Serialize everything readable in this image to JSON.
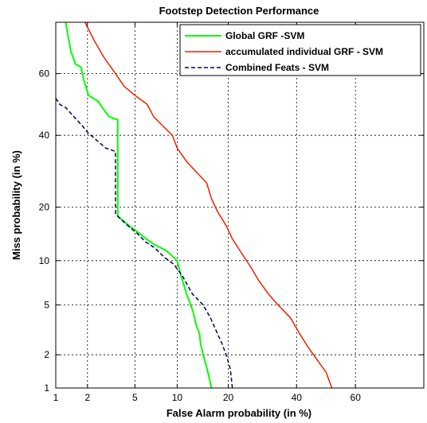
{
  "chart_data": {
    "type": "line",
    "title": "Footstep Detection Performance",
    "xlabel": "False Alarm probability (in %)",
    "ylabel": "Miss probability (in %)",
    "scale": "normal-deviate (DET)",
    "xlim": [
      1,
      80
    ],
    "ylim": [
      1,
      75
    ],
    "x_ticks": [
      1,
      2,
      5,
      10,
      20,
      40,
      60
    ],
    "y_ticks": [
      1,
      2,
      5,
      10,
      20,
      40,
      60
    ],
    "x_tick_labels": [
      "1",
      "2",
      "5",
      "10",
      "20",
      "40",
      "60"
    ],
    "y_tick_labels": [
      "1",
      "2",
      "5",
      "10",
      "20",
      "40",
      "60"
    ],
    "grid": true,
    "legend_position": "top-right",
    "series": [
      {
        "name": "Global GRF -SVM",
        "color": "#00ff00",
        "style": "solid",
        "points": [
          [
            1.25,
            75
          ],
          [
            1.4,
            67
          ],
          [
            1.55,
            63
          ],
          [
            1.75,
            62
          ],
          [
            1.85,
            58
          ],
          [
            2.05,
            53
          ],
          [
            2.5,
            51
          ],
          [
            2.7,
            49
          ],
          [
            3.1,
            46
          ],
          [
            3.65,
            45
          ],
          [
            3.65,
            18
          ],
          [
            4.05,
            17
          ],
          [
            4.5,
            16
          ],
          [
            5.1,
            15
          ],
          [
            6.1,
            13.5
          ],
          [
            7.0,
            12.5
          ],
          [
            8.5,
            11.5
          ],
          [
            10.0,
            10
          ],
          [
            10.6,
            8
          ],
          [
            11.5,
            6
          ],
          [
            12.6,
            4.5
          ],
          [
            13.2,
            3.5
          ],
          [
            13.8,
            3.0
          ],
          [
            14.0,
            2.5
          ],
          [
            14.5,
            2.0
          ],
          [
            15.3,
            1.5
          ],
          [
            16.2,
            1.0
          ]
        ]
      },
      {
        "name": "accumulated individual GRF - SVM",
        "color": "#ee2200",
        "style": "solid",
        "points": [
          [
            1.9,
            75
          ],
          [
            2.3,
            70
          ],
          [
            2.8,
            65
          ],
          [
            3.5,
            60
          ],
          [
            4.1,
            56
          ],
          [
            5.0,
            53
          ],
          [
            6.2,
            50
          ],
          [
            6.9,
            46
          ],
          [
            8.0,
            43
          ],
          [
            9.3,
            40
          ],
          [
            10.0,
            36
          ],
          [
            11.5,
            32
          ],
          [
            13.2,
            29
          ],
          [
            15.2,
            26
          ],
          [
            16.2,
            22
          ],
          [
            17.5,
            19
          ],
          [
            19.5,
            16
          ],
          [
            21.0,
            13.5
          ],
          [
            23.5,
            11
          ],
          [
            26.0,
            9
          ],
          [
            28.0,
            7.5
          ],
          [
            31.0,
            6
          ],
          [
            34.0,
            5
          ],
          [
            38.0,
            4
          ],
          [
            41.0,
            3
          ],
          [
            44.0,
            2.3
          ],
          [
            47.0,
            1.8
          ],
          [
            50.0,
            1.4
          ],
          [
            52.0,
            1.0
          ]
        ]
      },
      {
        "name": "Combined Feats - SVM",
        "color": "#000066",
        "style": "dashed",
        "points": [
          [
            1.0,
            52
          ],
          [
            1.1,
            50
          ],
          [
            1.25,
            49
          ],
          [
            1.5,
            46
          ],
          [
            1.8,
            43
          ],
          [
            2.0,
            41
          ],
          [
            2.5,
            38
          ],
          [
            2.9,
            36
          ],
          [
            3.5,
            35
          ],
          [
            3.5,
            18.5
          ],
          [
            3.8,
            17.5
          ],
          [
            4.4,
            16
          ],
          [
            5.2,
            14.5
          ],
          [
            6.0,
            13
          ],
          [
            7.0,
            12
          ],
          [
            8.2,
            10.5
          ],
          [
            9.5,
            9.5
          ],
          [
            10.8,
            8
          ],
          [
            12.5,
            6
          ],
          [
            14.5,
            5
          ],
          [
            16.0,
            4
          ],
          [
            17.5,
            3
          ],
          [
            18.5,
            2.5
          ],
          [
            19.5,
            2.0
          ],
          [
            20.5,
            1.5
          ],
          [
            21.0,
            1.0
          ]
        ]
      }
    ]
  }
}
